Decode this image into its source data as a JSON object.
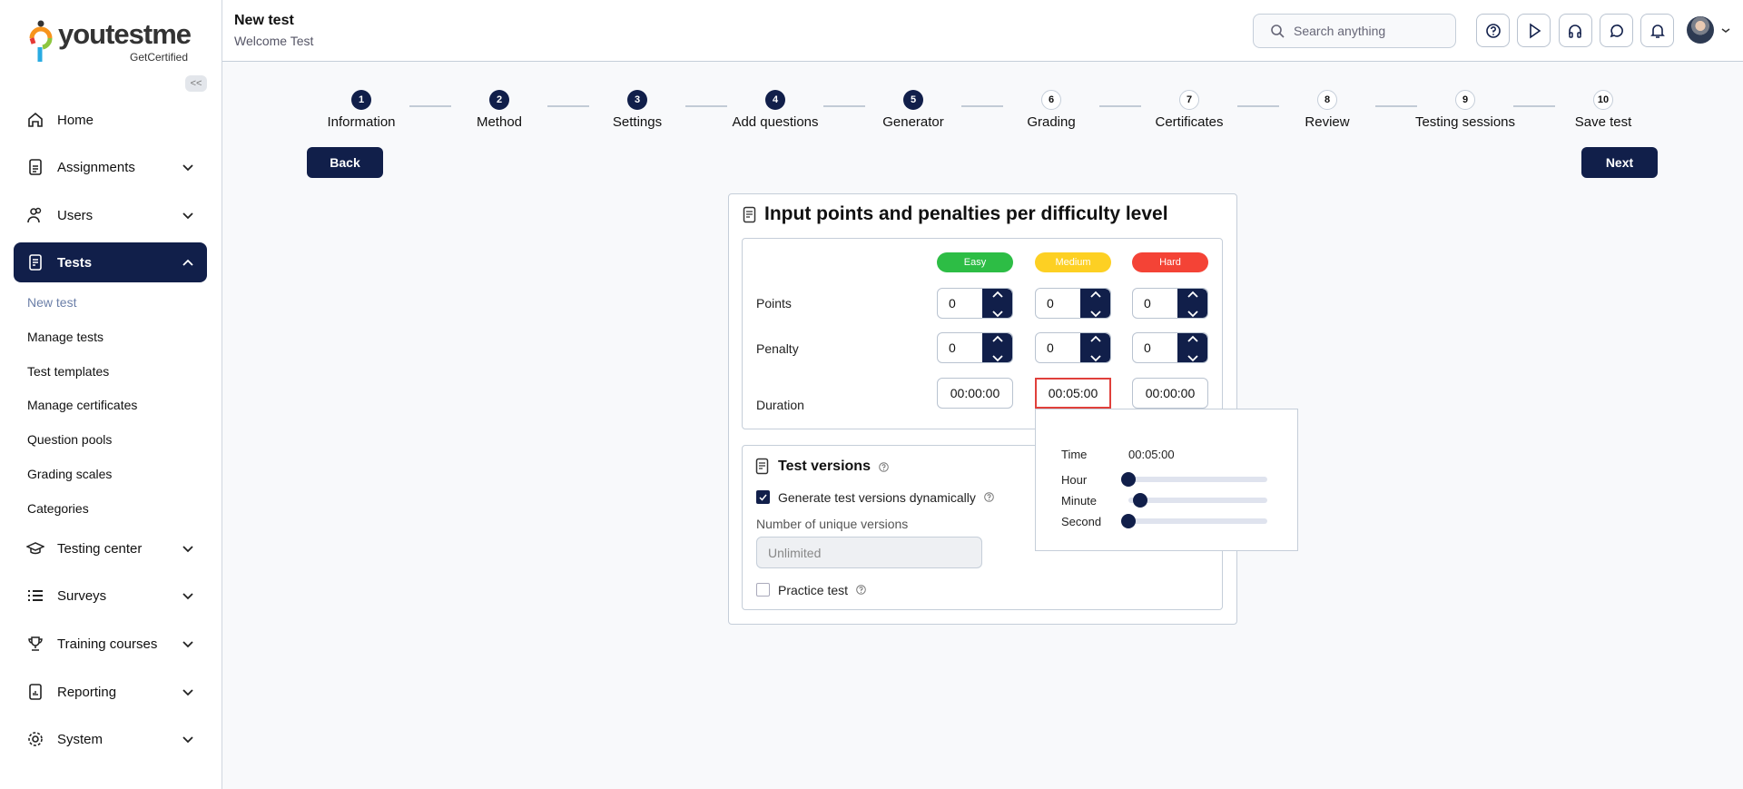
{
  "brand": {
    "name": "youtestme",
    "tagline": "GetCertified"
  },
  "sidebar": {
    "collapse_label": "<<",
    "items": [
      {
        "label": "Home",
        "icon": "home-icon"
      },
      {
        "label": "Assignments",
        "icon": "document-icon"
      },
      {
        "label": "Users",
        "icon": "users-icon"
      },
      {
        "label": "Tests",
        "icon": "test-icon",
        "active": true
      },
      {
        "label": "Testing center",
        "icon": "graduation-cap-icon"
      },
      {
        "label": "Surveys",
        "icon": "list-icon"
      },
      {
        "label": "Training courses",
        "icon": "trophy-icon"
      },
      {
        "label": "Reporting",
        "icon": "report-icon"
      },
      {
        "label": "System",
        "icon": "gear-icon"
      }
    ],
    "tests_sub": [
      "New test",
      "Manage tests",
      "Test templates",
      "Manage certificates",
      "Question pools",
      "Grading scales",
      "Categories"
    ]
  },
  "header": {
    "title": "New test",
    "subtitle": "Welcome Test",
    "search_placeholder": "Search anything",
    "icons": [
      "help-icon",
      "play-icon",
      "headset-icon",
      "chat-icon",
      "bell-icon"
    ]
  },
  "stepper": {
    "steps": [
      {
        "n": "1",
        "label": "Information",
        "done": true
      },
      {
        "n": "2",
        "label": "Method",
        "done": true
      },
      {
        "n": "3",
        "label": "Settings",
        "done": true
      },
      {
        "n": "4",
        "label": "Add questions",
        "done": true
      },
      {
        "n": "5",
        "label": "Generator",
        "done": true
      },
      {
        "n": "6",
        "label": "Grading",
        "done": false
      },
      {
        "n": "7",
        "label": "Certificates",
        "done": false
      },
      {
        "n": "8",
        "label": "Review",
        "done": false
      },
      {
        "n": "9",
        "label": "Testing sessions",
        "done": false
      },
      {
        "n": "10",
        "label": "Save test",
        "done": false
      }
    ],
    "back": "Back",
    "next": "Next"
  },
  "card": {
    "title": "Input points and penalties per difficulty level",
    "levels": [
      {
        "label": "Easy",
        "color": "#2dbd45"
      },
      {
        "label": "Medium",
        "color": "#fdd023"
      },
      {
        "label": "Hard",
        "color": "#f44336"
      }
    ],
    "rows": {
      "points": "Points",
      "penalty": "Penalty",
      "duration": "Duration"
    },
    "points": [
      "0",
      "0",
      "0"
    ],
    "penalty": [
      "0",
      "0",
      "0"
    ],
    "duration": [
      "00:00:00",
      "00:05:00",
      "00:00:00"
    ],
    "time_picker": {
      "time_label": "Time",
      "time_value": "00:05:00",
      "hour_label": "Hour",
      "minute_label": "Minute",
      "second_label": "Second",
      "hour": 0,
      "minute": 5,
      "second": 0
    },
    "versions": {
      "title": "Test versions",
      "dynamic_label": "Generate test versions dynamically",
      "dynamic_checked": true,
      "unique_label": "Number of unique versions",
      "unique_placeholder": "Unlimited",
      "practice_label": "Practice test",
      "practice_checked": false
    }
  },
  "colors": {
    "navy": "#111f4a",
    "selected_border": "#e0403b"
  }
}
